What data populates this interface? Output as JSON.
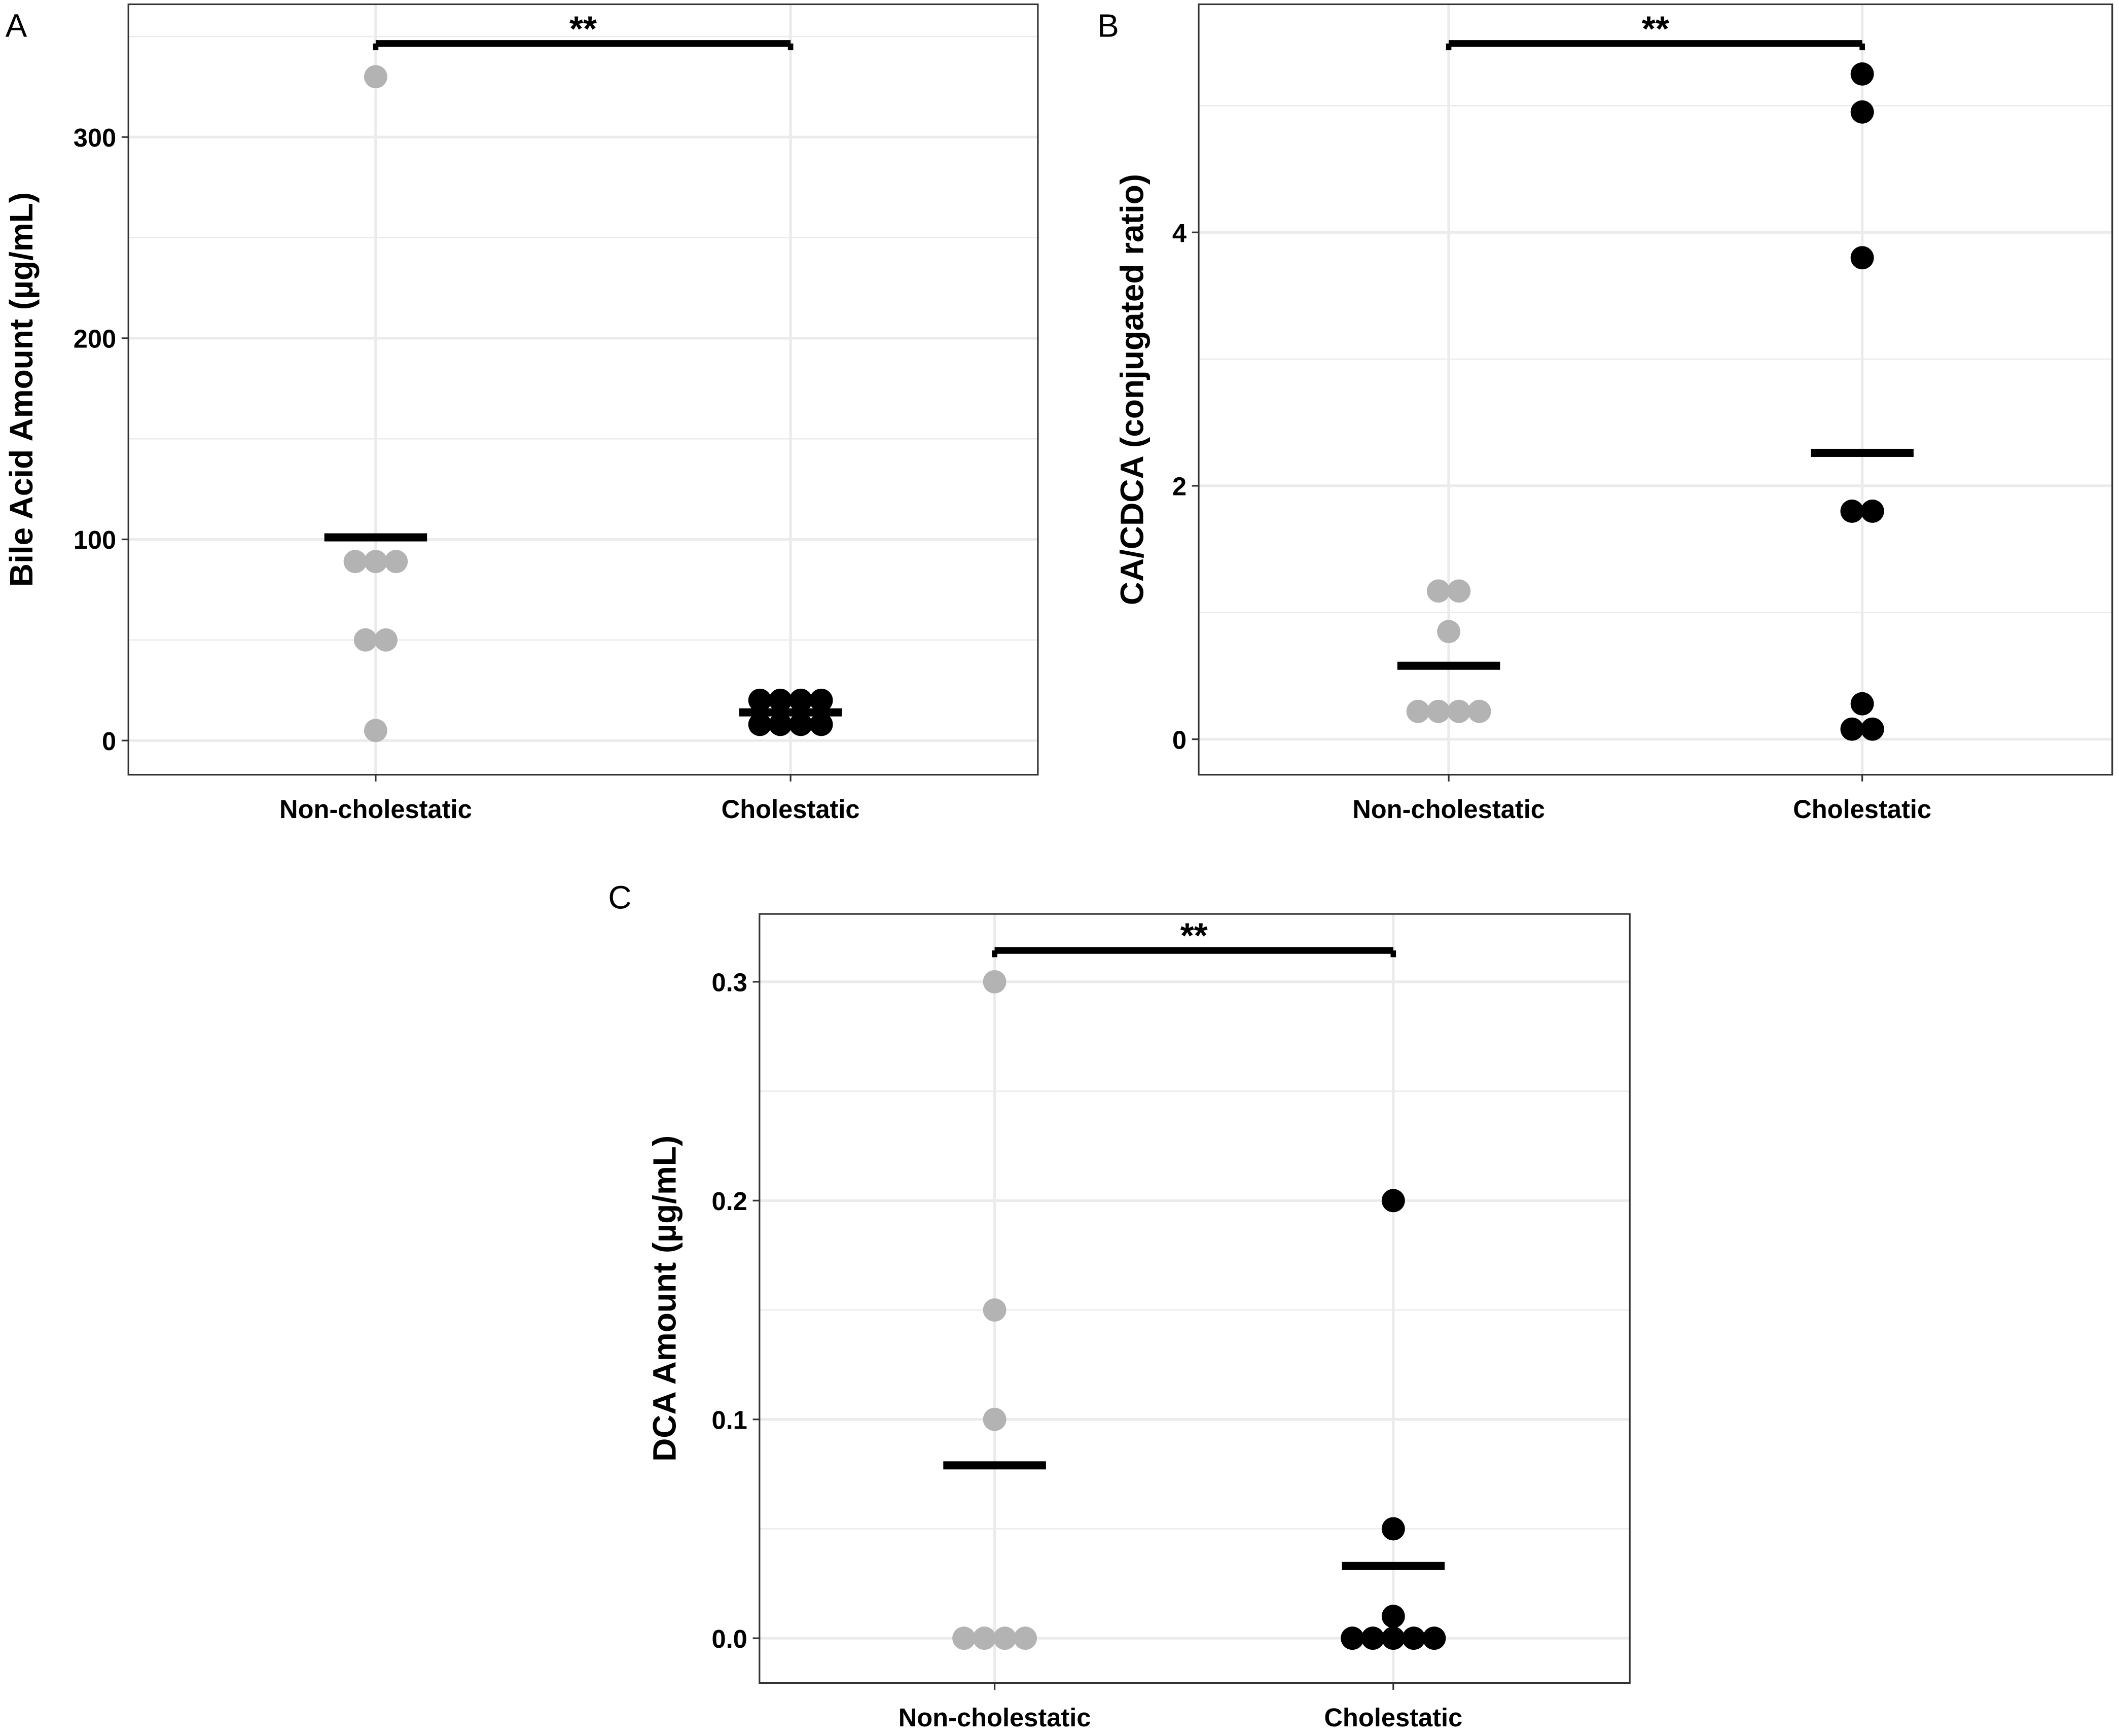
{
  "colors": {
    "Non-cholestatic": "#b3b3b3",
    "Cholestatic": "#000000",
    "grid": "#ebebeb",
    "mean_bar": "#000000"
  },
  "chart_data": [
    {
      "panel": "A",
      "type": "scatter",
      "subtype": "dot-strip with mean bar",
      "ylabel": "Bile Acid Amount (µg/mL)",
      "categories": [
        "Non-cholestatic",
        "Cholestatic"
      ],
      "ylim": [
        -17,
        366
      ],
      "yticks": [
        0,
        100,
        200,
        300
      ],
      "grid": true,
      "series": [
        {
          "name": "Non-cholestatic",
          "values": [
            330,
            89,
            89,
            89,
            50,
            50,
            5
          ],
          "mean": 101
        },
        {
          "name": "Cholestatic",
          "values": [
            20,
            20,
            20,
            20,
            8,
            8,
            8,
            8
          ],
          "mean": 14
        }
      ],
      "significance": "**"
    },
    {
      "panel": "B",
      "type": "scatter",
      "subtype": "dot-strip with mean bar",
      "ylabel": "CA/CDCA (conjugated ratio)",
      "categories": [
        "Non-cholestatic",
        "Cholestatic"
      ],
      "ylim": [
        -0.28,
        5.8
      ],
      "yticks": [
        0,
        2,
        4
      ],
      "grid": true,
      "series": [
        {
          "name": "Non-cholestatic",
          "values": [
            1.17,
            1.17,
            0.85,
            0.22,
            0.22,
            0.22,
            0.22
          ],
          "mean": 0.58
        },
        {
          "name": "Cholestatic",
          "values": [
            5.25,
            4.95,
            3.8,
            1.8,
            1.8,
            0.28,
            0.08,
            0.08
          ],
          "mean": 2.26
        }
      ],
      "significance": "**"
    },
    {
      "panel": "C",
      "type": "scatter",
      "subtype": "dot-strip with mean bar",
      "ylabel": "DCA Amount (µg/mL)",
      "categories": [
        "Non-cholestatic",
        "Cholestatic"
      ],
      "ylim": [
        -0.0205,
        0.331
      ],
      "yticks": [
        0.0,
        0.1,
        0.2,
        0.3
      ],
      "ytick_labels": [
        "0.0",
        "0.1",
        "0.2",
        "0.3"
      ],
      "grid": true,
      "series": [
        {
          "name": "Non-cholestatic",
          "values": [
            0.3,
            0.15,
            0.1,
            0,
            0,
            0,
            0
          ],
          "mean": 0.079
        },
        {
          "name": "Cholestatic",
          "values": [
            0.2,
            0.05,
            0.01,
            0,
            0,
            0,
            0,
            0
          ],
          "mean": 0.033
        }
      ],
      "significance": "**"
    }
  ]
}
